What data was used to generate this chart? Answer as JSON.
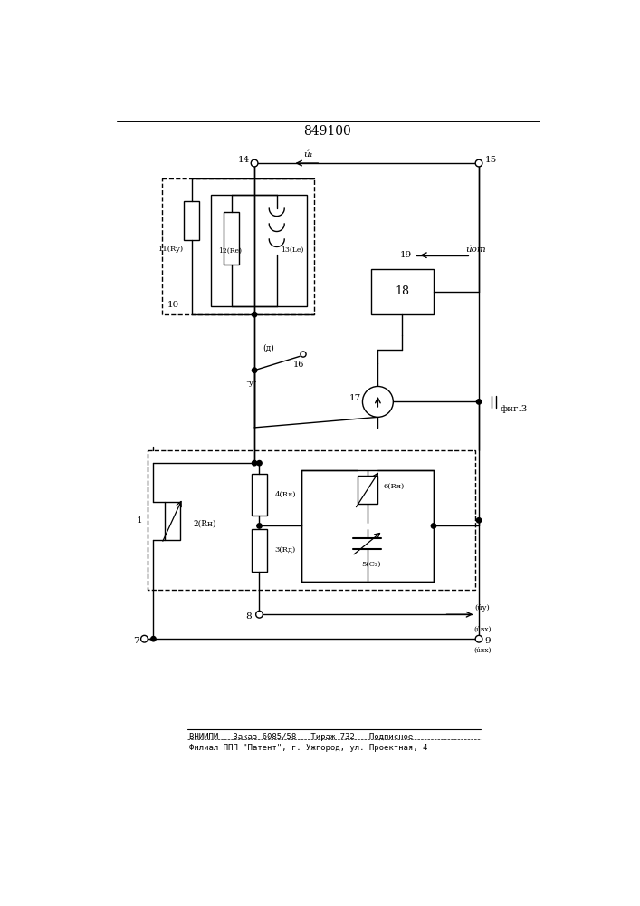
{
  "title": "849100",
  "title_fontsize": 10,
  "footer_line1": "ВНИИПИ   Заказ 6085/58   Тираж 732   Подписное",
  "footer_line2": "Филиал ППП \"Патент\", г. Ужгород, ул. Проектная, 4",
  "fig3_label": "фиг.3",
  "background_color": "#ffffff",
  "line_color": "#000000",
  "line_width": 1.0
}
